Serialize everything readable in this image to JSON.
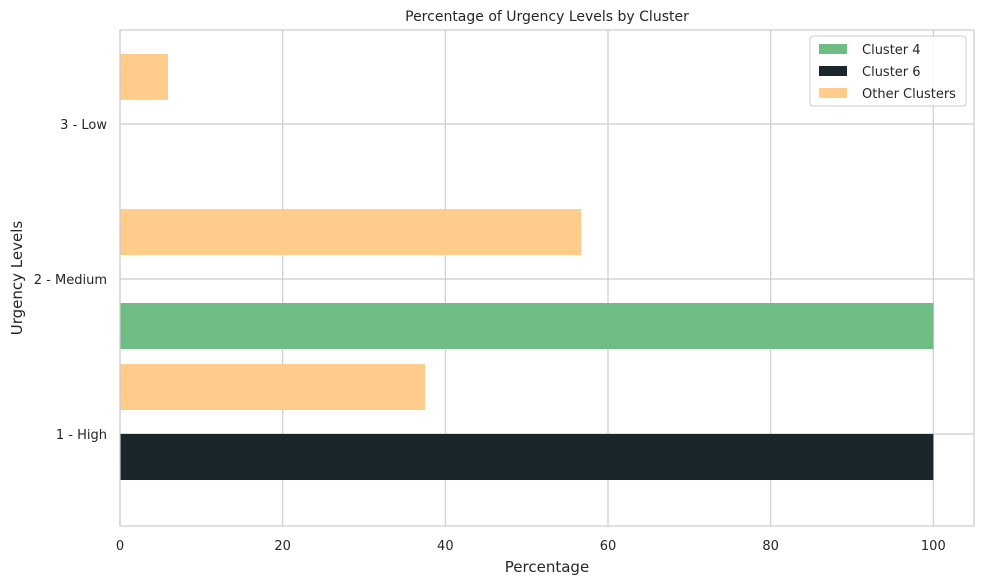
{
  "chart_data": {
    "type": "bar",
    "orientation": "horizontal",
    "title": "Percentage of Urgency Levels by Cluster",
    "xlabel": "Percentage",
    "ylabel": "Urgency Levels",
    "xlim": [
      0,
      105
    ],
    "x_ticks": [
      0,
      20,
      40,
      60,
      80,
      100
    ],
    "x_tick_labels": [
      "0",
      "20",
      "40",
      "60",
      "80",
      "100"
    ],
    "categories": [
      "1 - High",
      "2 - Medium",
      "3 - Low"
    ],
    "grid": true,
    "legend_position": "top-right",
    "series": [
      {
        "name": "Cluster 4",
        "color": "#6fbc84",
        "values": [
          null,
          100,
          null
        ]
      },
      {
        "name": "Cluster 6",
        "color": "#1b262c",
        "values": [
          100,
          null,
          null
        ]
      },
      {
        "name": "Other Clusters",
        "color": "#ffcc8c",
        "values": [
          37.5,
          56.7,
          5.9
        ]
      }
    ]
  }
}
